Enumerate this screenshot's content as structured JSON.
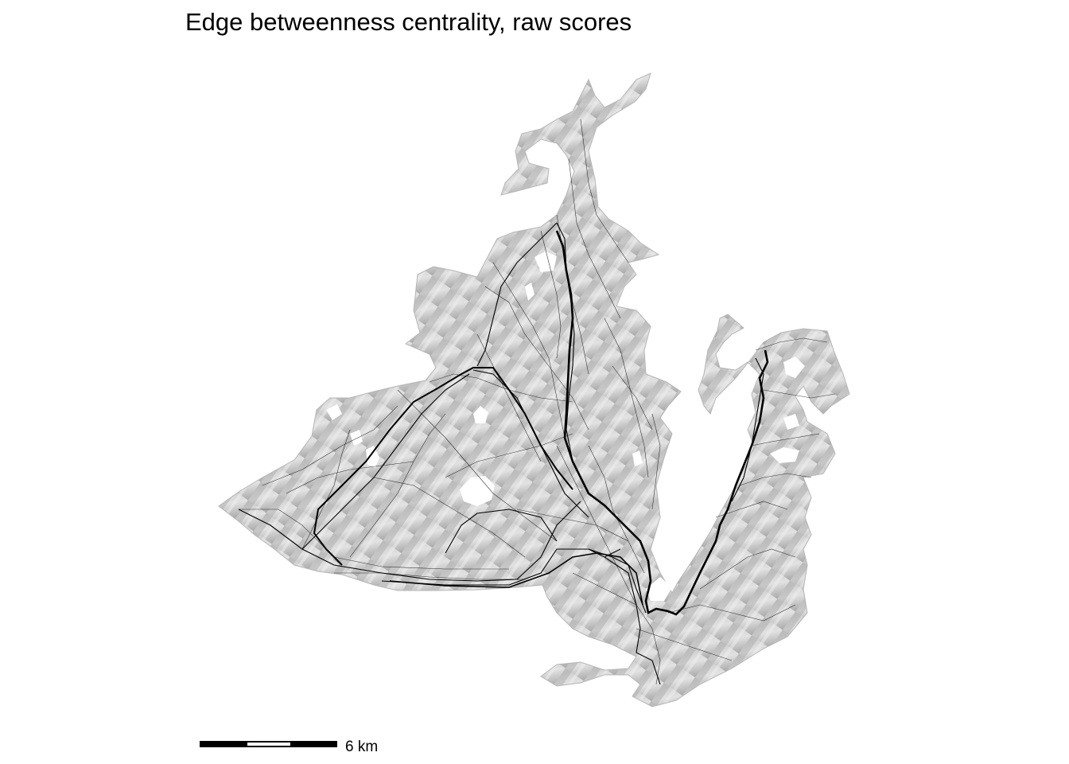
{
  "title": "Edge betweenness centrality, raw scores",
  "scale_bar": {
    "label": "6 km",
    "segments": 3
  },
  "colors": {
    "terrain_light": "#d9d9d9",
    "terrain_dark": "#8c8c8c",
    "path": "#000000",
    "background": "#ffffff"
  }
}
